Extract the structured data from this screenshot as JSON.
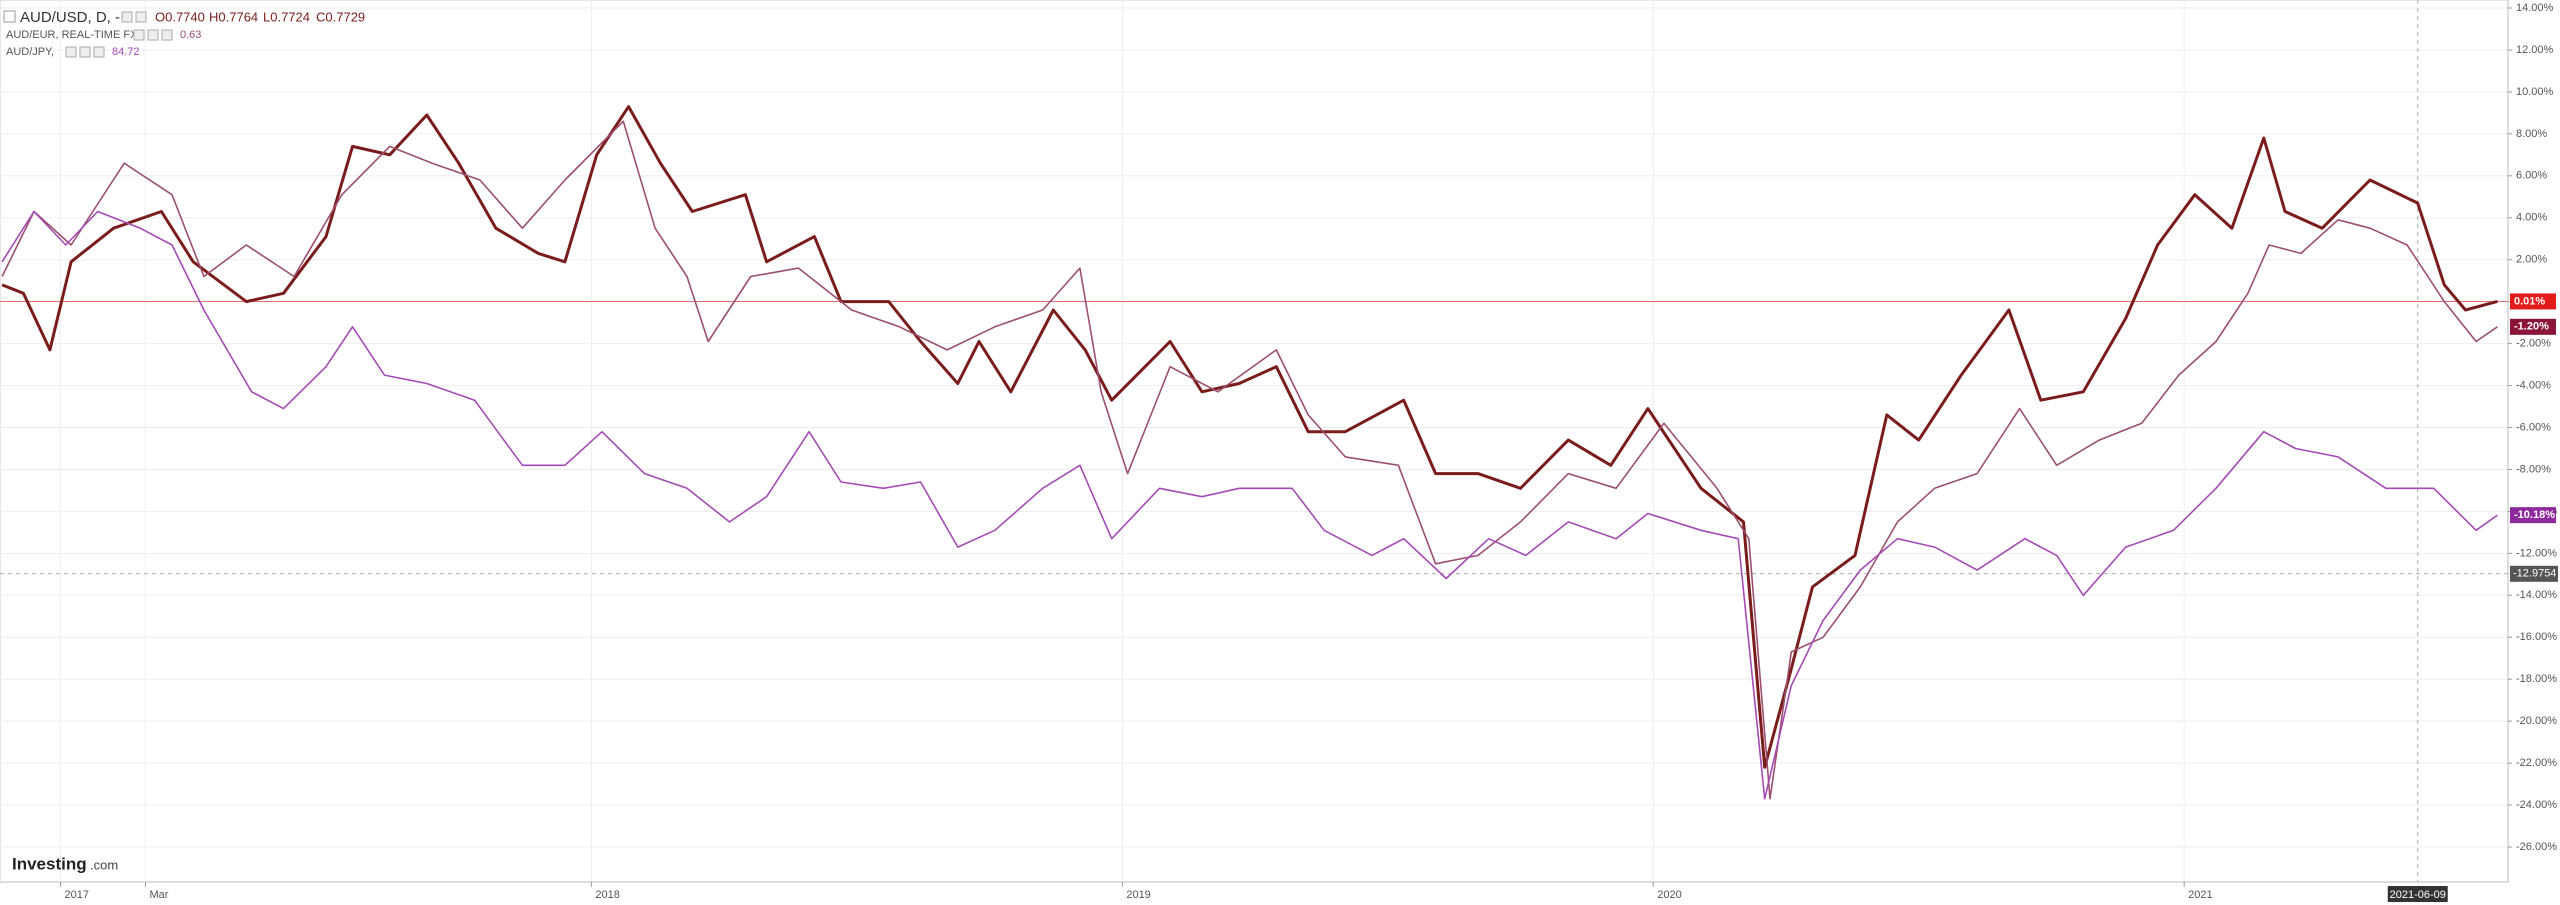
{
  "chart_data": {
    "type": "line",
    "header": {
      "quote_labels": [
        "O0.7740",
        "H0.7764",
        "L0.7724",
        "C0.7729"
      ],
      "eur_value": "0.63",
      "jpy_value": "84.72"
    },
    "logo": {
      "brand": "Investing",
      "suffix": ".com"
    },
    "xlim": [
      2016.886,
      2021.61
    ],
    "xticks": [
      {
        "value": 2017,
        "label": "2017"
      },
      {
        "value": 2017.16,
        "label": "Mar"
      },
      {
        "value": 2018,
        "label": "2018"
      },
      {
        "value": 2019,
        "label": "2019"
      },
      {
        "value": 2020,
        "label": "2020"
      },
      {
        "value": 2021,
        "label": "2021"
      }
    ],
    "ylim": [
      -26,
      14
    ],
    "yticks": [
      {
        "value": 14,
        "label": "14.00%"
      },
      {
        "value": 12,
        "label": "12.00%"
      },
      {
        "value": 10,
        "label": "10.00%"
      },
      {
        "value": 8,
        "label": "8.00%"
      },
      {
        "value": 6,
        "label": "6.00%"
      },
      {
        "value": 4,
        "label": "4.00%"
      },
      {
        "value": 2,
        "label": "2.00%"
      },
      {
        "value": 0,
        "label": "0.00%"
      },
      {
        "value": -2,
        "label": "-2.00%"
      },
      {
        "value": -4,
        "label": "-4.00%"
      },
      {
        "value": -6,
        "label": "-6.00%"
      },
      {
        "value": -8,
        "label": "-8.00%"
      },
      {
        "value": -10,
        "label": "-10.00%"
      },
      {
        "value": -12,
        "label": "-12.00%"
      },
      {
        "value": -14,
        "label": "-14.00%"
      },
      {
        "value": -16,
        "label": "-16.00%"
      },
      {
        "value": -18,
        "label": "-18.00%"
      },
      {
        "value": -20,
        "label": "-20.00%"
      },
      {
        "value": -22,
        "label": "-22.00%"
      },
      {
        "value": -24,
        "label": "-24.00%"
      },
      {
        "value": -26,
        "label": "-26.00%"
      }
    ],
    "grid": true,
    "crosshair": {
      "x": 2021.44,
      "x_label": "2021-06-09",
      "y": -12.9754,
      "y_label": "-12.9754"
    },
    "series": [
      {
        "name": "AUD/USD, D, -",
        "color": "#7b1c1c",
        "label_color": "#e31a1a",
        "width": 3,
        "last_label": "0.01%",
        "x": [
          2016.89,
          2016.93,
          2016.98,
          2017.02,
          2017.1,
          2017.19,
          2017.25,
          2017.35,
          2017.42,
          2017.5,
          2017.55,
          2017.62,
          2017.69,
          2017.75,
          2017.82,
          2017.9,
          2017.95,
          2018.01,
          2018.07,
          2018.13,
          2018.19,
          2018.29,
          2018.33,
          2018.42,
          2018.47,
          2018.56,
          2018.62,
          2018.69,
          2018.73,
          2018.79,
          2018.87,
          2018.93,
          2018.98,
          2019.09,
          2019.15,
          2019.22,
          2019.29,
          2019.35,
          2019.42,
          2019.53,
          2019.59,
          2019.67,
          2019.75,
          2019.84,
          2019.92,
          2019.99,
          2020.09,
          2020.17,
          2020.21,
          2020.26,
          2020.3,
          2020.38,
          2020.44,
          2020.5,
          2020.58,
          2020.67,
          2020.73,
          2020.81,
          2020.89,
          2020.95,
          2021.02,
          2021.09,
          2021.15,
          2021.19,
          2021.26,
          2021.35,
          2021.44,
          2021.49,
          2021.53,
          2021.59
        ],
        "values": [
          0.8,
          0.4,
          -2.3,
          1.9,
          3.5,
          4.3,
          1.9,
          0,
          0.4,
          3.1,
          7.4,
          7.0,
          8.9,
          6.6,
          3.5,
          2.3,
          1.9,
          7.0,
          9.3,
          6.6,
          4.3,
          5.1,
          1.9,
          3.1,
          0,
          0,
          -1.9,
          -3.9,
          -1.9,
          -4.3,
          -0.4,
          -2.3,
          -4.7,
          -1.9,
          -4.3,
          -3.9,
          -3.1,
          -6.2,
          -6.2,
          -4.7,
          -8.2,
          -8.2,
          -8.9,
          -6.6,
          -7.8,
          -5.1,
          -8.9,
          -10.5,
          -22.2,
          -17.5,
          -13.6,
          -12.1,
          -5.4,
          -6.6,
          -3.5,
          -0.4,
          -4.7,
          -4.3,
          -0.8,
          2.7,
          5.1,
          3.5,
          7.8,
          4.3,
          3.5,
          5.8,
          4.7,
          0.8,
          -0.4,
          0.01
        ]
      },
      {
        "name": "AUD/EUR, REAL-TIME FX",
        "color": "#9c4f6e",
        "label_color": "#8a1538",
        "width": 1.6,
        "last_label": "-1.20%",
        "x": [
          2016.89,
          2016.95,
          2017.02,
          2017.12,
          2017.21,
          2017.27,
          2017.35,
          2017.44,
          2017.53,
          2017.62,
          2017.7,
          2017.79,
          2017.87,
          2017.95,
          2018.06,
          2018.12,
          2018.18,
          2018.22,
          2018.3,
          2018.39,
          2018.49,
          2018.58,
          2018.67,
          2018.76,
          2018.85,
          2018.92,
          2018.96,
          2019.01,
          2019.09,
          2019.18,
          2019.29,
          2019.35,
          2019.42,
          2019.52,
          2019.59,
          2019.67,
          2019.75,
          2019.84,
          2019.93,
          2020.02,
          2020.12,
          2020.18,
          2020.22,
          2020.26,
          2020.32,
          2020.39,
          2020.46,
          2020.53,
          2020.61,
          2020.69,
          2020.76,
          2020.84,
          2020.92,
          2020.99,
          2021.06,
          2021.12,
          2021.16,
          2021.22,
          2021.29,
          2021.35,
          2021.42,
          2021.49,
          2021.55,
          2021.59
        ],
        "values": [
          1.2,
          4.3,
          2.7,
          6.6,
          5.1,
          1.2,
          2.7,
          1.2,
          5.1,
          7.4,
          6.6,
          5.8,
          3.5,
          5.8,
          8.6,
          3.5,
          1.2,
          -1.9,
          1.2,
          1.6,
          -0.4,
          -1.2,
          -2.3,
          -1.2,
          -0.4,
          1.6,
          -4.3,
          -8.2,
          -3.1,
          -4.3,
          -2.3,
          -5.4,
          -7.4,
          -7.8,
          -12.5,
          -12.1,
          -10.5,
          -8.2,
          -8.9,
          -5.8,
          -8.9,
          -11.3,
          -23.7,
          -16.7,
          -16.0,
          -13.6,
          -10.5,
          -8.9,
          -8.2,
          -5.1,
          -7.8,
          -6.6,
          -5.8,
          -3.5,
          -1.9,
          0.4,
          2.7,
          2.3,
          3.9,
          3.5,
          2.7,
          0,
          -1.9,
          -1.2
        ]
      },
      {
        "name": "AUD/JPY,",
        "color": "#a54bb5",
        "label_color": "#8e2a9e",
        "width": 1.6,
        "last_label": "-10.18%",
        "x": [
          2016.89,
          2016.95,
          2017.01,
          2017.07,
          2017.15,
          2017.21,
          2017.27,
          2017.36,
          2017.42,
          2017.5,
          2017.55,
          2017.61,
          2017.69,
          2017.78,
          2017.87,
          2017.95,
          2018.02,
          2018.1,
          2018.18,
          2018.26,
          2018.33,
          2018.41,
          2018.47,
          2018.55,
          2018.62,
          2018.69,
          2018.76,
          2018.85,
          2018.92,
          2018.98,
          2019.07,
          2019.15,
          2019.22,
          2019.32,
          2019.38,
          2019.47,
          2019.53,
          2019.61,
          2019.69,
          2019.76,
          2019.84,
          2019.93,
          2019.99,
          2020.09,
          2020.16,
          2020.21,
          2020.26,
          2020.32,
          2020.39,
          2020.46,
          2020.53,
          2020.61,
          2020.7,
          2020.76,
          2020.81,
          2020.89,
          2020.98,
          2021.06,
          2021.15,
          2021.21,
          2021.29,
          2021.38,
          2021.47,
          2021.55,
          2021.59
        ],
        "values": [
          1.9,
          4.3,
          2.7,
          4.3,
          3.5,
          2.7,
          -0.4,
          -4.3,
          -5.1,
          -3.1,
          -1.2,
          -3.5,
          -3.9,
          -4.7,
          -7.8,
          -7.8,
          -6.2,
          -8.2,
          -8.9,
          -10.5,
          -9.3,
          -6.2,
          -8.6,
          -8.9,
          -8.6,
          -11.7,
          -10.9,
          -8.9,
          -7.8,
          -11.3,
          -8.9,
          -9.3,
          -8.9,
          -8.9,
          -10.9,
          -12.1,
          -11.3,
          -13.2,
          -11.3,
          -12.1,
          -10.5,
          -11.3,
          -10.1,
          -10.9,
          -11.3,
          -23.7,
          -18.3,
          -15.2,
          -12.8,
          -11.3,
          -11.7,
          -12.8,
          -11.3,
          -12.1,
          -14.0,
          -11.7,
          -10.9,
          -8.9,
          -6.2,
          -7.0,
          -7.4,
          -8.9,
          -8.9,
          -10.9,
          -10.18
        ]
      }
    ]
  }
}
